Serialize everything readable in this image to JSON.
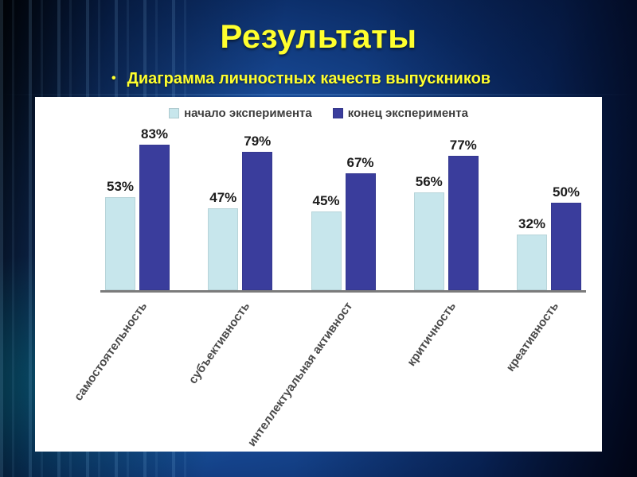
{
  "slide": {
    "title": "Результаты",
    "bullet_marker": "•",
    "bullet": "Диаграмма личностных качеств выпускников"
  },
  "colors": {
    "title_text": "#ffff2e",
    "bullet_text": "#ffff2e",
    "panel_bg": "#ffffff",
    "axis_line": "#7b7b7b",
    "bar_start": "#c7e6ec",
    "bar_end": "#3a3d9c"
  },
  "chart_data": {
    "type": "bar",
    "title": "",
    "categories": [
      "самостоятельность",
      "субъективность",
      "интеллектуальная активност",
      "критичность",
      "креативность"
    ],
    "series": [
      {
        "name": "начало эксперимента",
        "color": "#c7e6ec",
        "values": [
          53,
          47,
          45,
          56,
          32
        ]
      },
      {
        "name": "конец эксперимента",
        "color": "#3a3d9c",
        "values": [
          83,
          79,
          67,
          77,
          50
        ]
      }
    ],
    "value_suffix": "%",
    "ylim": [
      0,
      100
    ],
    "grid": false,
    "legend_position": "top"
  }
}
